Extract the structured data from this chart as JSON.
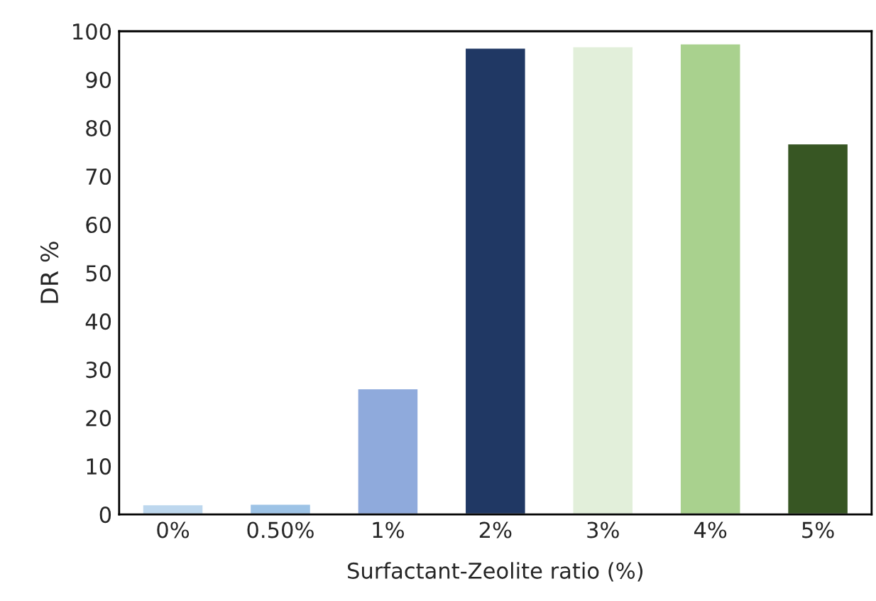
{
  "chart_data": {
    "type": "bar",
    "xlabel": "Surfactant-Zeolite ratio (%)",
    "ylabel": "DR %",
    "categories": [
      "0%",
      "0.50%",
      "1%",
      "2%",
      "3%",
      "4%",
      "5%"
    ],
    "values": [
      2.1,
      2.2,
      26.1,
      96.6,
      96.9,
      97.5,
      76.8
    ],
    "colors": [
      "#bdd7ee",
      "#9dc3e6",
      "#8faadc",
      "#203864",
      "#e2efda",
      "#a9d18e",
      "#375623"
    ],
    "ylim": [
      0,
      100
    ],
    "yticks": [
      0,
      10,
      20,
      30,
      40,
      50,
      60,
      70,
      80,
      90,
      100
    ],
    "grid": false,
    "legend": false
  }
}
